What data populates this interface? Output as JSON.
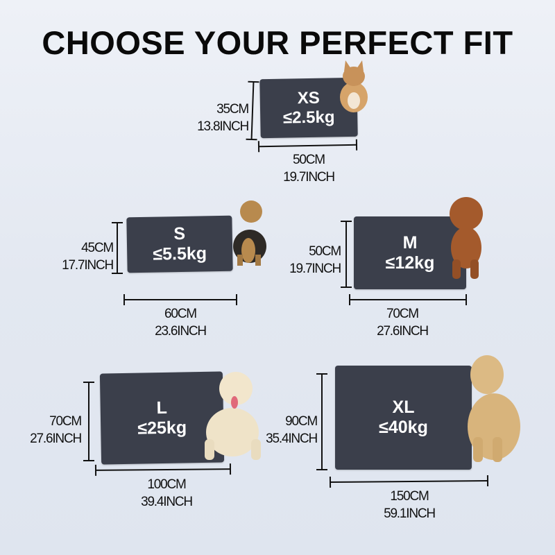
{
  "title": "CHOOSE YOUR PERFECT FIT",
  "sizes": [
    {
      "size": "XS",
      "weight": "≤2.5kg",
      "height_cm": "35CM",
      "height_in": "13.8INCH",
      "width_cm": "50CM",
      "width_in": "19.7INCH",
      "pet": "kitten"
    },
    {
      "size": "S",
      "weight": "≤5.5kg",
      "height_cm": "45CM",
      "height_in": "17.7INCH",
      "width_cm": "60CM",
      "width_in": "23.6INCH",
      "pet": "yorkshire-terrier"
    },
    {
      "size": "M",
      "weight": "≤12kg",
      "height_cm": "50CM",
      "height_in": "19.7INCH",
      "width_cm": "70CM",
      "width_in": "27.6INCH",
      "pet": "toy-poodle"
    },
    {
      "size": "L",
      "weight": "≤25kg",
      "height_cm": "70CM",
      "height_in": "27.6INCH",
      "width_cm": "100CM",
      "width_in": "39.4INCH",
      "pet": "labrador"
    },
    {
      "size": "XL",
      "weight": "≤40kg",
      "height_cm": "90CM",
      "height_in": "35.4INCH",
      "width_cm": "150CM",
      "width_in": "59.1INCH",
      "pet": "golden-retriever"
    }
  ],
  "colors": {
    "mat": "#3b3f4b",
    "text": "#111111",
    "background": "#e6eaf2"
  }
}
